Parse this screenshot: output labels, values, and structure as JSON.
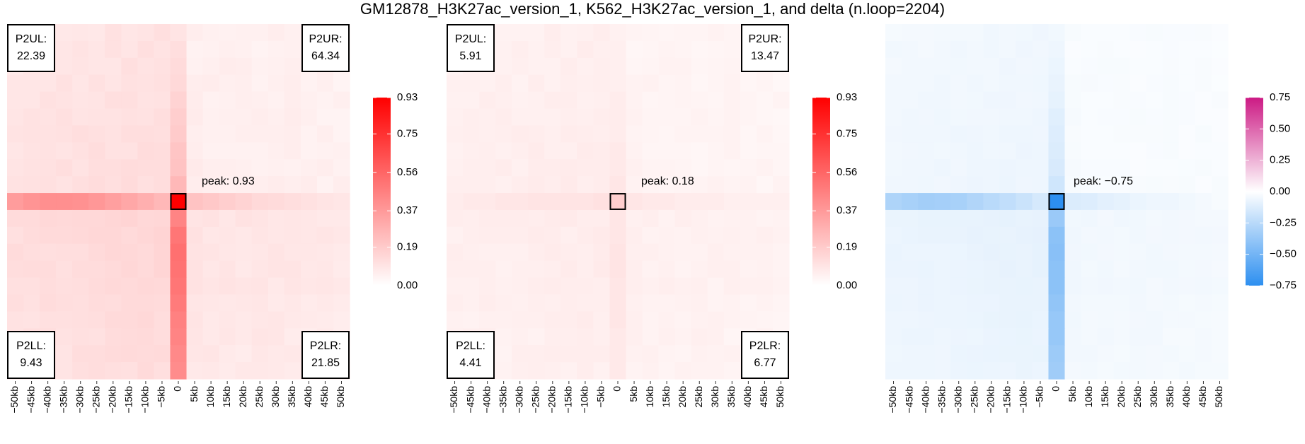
{
  "title": "GM12878_H3K27ac_version_1, K562_H3K27ac_version_1, and delta (n.loop=2204)",
  "chart_data": [
    {
      "type": "heatmap",
      "name": "GM12878_H3K27ac_version_1",
      "x_ticks": [
        "−50kb",
        "−45kb",
        "−40kb",
        "−35kb",
        "−30kb",
        "−25kb",
        "−20kb",
        "−15kb",
        "−10kb",
        "−5kb",
        "0",
        "5kb",
        "10kb",
        "15kb",
        "20kb",
        "25kb",
        "30kb",
        "35kb",
        "40kb",
        "45kb",
        "50kb"
      ],
      "peak_label": "peak: 0.93",
      "peak": 0.93,
      "corners": {
        "UL": {
          "label": "P2UL:",
          "value": "22.39"
        },
        "UR": {
          "label": "P2UR:",
          "value": "64.34"
        },
        "LL": {
          "label": "P2LL:",
          "value": "9.43"
        },
        "LR": {
          "label": "P2LR:",
          "value": "21.85"
        }
      },
      "colorbar": {
        "min": 0.0,
        "max": 0.93,
        "ticks": [
          "0.93",
          "0.75",
          "0.56",
          "0.37",
          "0.19",
          "0.00"
        ],
        "colors": [
          "#ffffff",
          "#ff0000"
        ]
      },
      "background": 0.04,
      "cross_row": [
        0.36,
        0.39,
        0.41,
        0.41,
        0.4,
        0.38,
        0.35,
        0.32,
        0.29,
        0.26,
        0.93,
        0.22,
        0.2,
        0.18,
        0.16,
        0.14,
        0.13,
        0.12,
        0.11,
        0.1,
        0.09
      ],
      "cross_col": [
        0.1,
        0.12,
        0.13,
        0.14,
        0.16,
        0.18,
        0.19,
        0.21,
        0.22,
        0.26,
        0.93,
        0.45,
        0.5,
        0.52,
        0.51,
        0.5,
        0.48,
        0.46,
        0.45,
        0.43,
        0.42
      ],
      "quadrant_levels": {
        "UL": 0.08,
        "UR": 0.03,
        "LL": 0.1,
        "LR": 0.06
      }
    },
    {
      "type": "heatmap",
      "name": "K562_H3K27ac_version_1",
      "x_ticks": [
        "−50kb",
        "−45kb",
        "−40kb",
        "−35kb",
        "−30kb",
        "−25kb",
        "−20kb",
        "−15kb",
        "−10kb",
        "−5kb",
        "0",
        "5kb",
        "10kb",
        "15kb",
        "20kb",
        "25kb",
        "30kb",
        "35kb",
        "40kb",
        "45kb",
        "50kb"
      ],
      "peak_label": "peak: 0.18",
      "peak": 0.18,
      "corners": {
        "UL": {
          "label": "P2UL:",
          "value": "5.91"
        },
        "UR": {
          "label": "P2UR:",
          "value": "13.47"
        },
        "LL": {
          "label": "P2LL:",
          "value": "4.41"
        },
        "LR": {
          "label": "P2LR:",
          "value": "6.77"
        }
      },
      "colorbar": {
        "min": 0.0,
        "max": 0.93,
        "ticks": [
          "0.93",
          "0.75",
          "0.56",
          "0.37",
          "0.19",
          "0.00"
        ],
        "colors": [
          "#ffffff",
          "#ff0000"
        ]
      },
      "background": 0.03,
      "cross_row": [
        0.07,
        0.08,
        0.08,
        0.09,
        0.09,
        0.1,
        0.1,
        0.1,
        0.1,
        0.11,
        0.18,
        0.09,
        0.08,
        0.08,
        0.07,
        0.07,
        0.07,
        0.06,
        0.06,
        0.06,
        0.06
      ],
      "cross_col": [
        0.05,
        0.06,
        0.06,
        0.06,
        0.07,
        0.07,
        0.07,
        0.08,
        0.08,
        0.09,
        0.18,
        0.09,
        0.09,
        0.1,
        0.1,
        0.09,
        0.09,
        0.09,
        0.08,
        0.08,
        0.08
      ],
      "quadrant_levels": {
        "UL": 0.04,
        "UR": 0.02,
        "LL": 0.04,
        "LR": 0.03
      }
    },
    {
      "type": "heatmap",
      "name": "delta",
      "x_ticks": [
        "−50kb",
        "−45kb",
        "−40kb",
        "−35kb",
        "−30kb",
        "−25kb",
        "−20kb",
        "−15kb",
        "−10kb",
        "−5kb",
        "0",
        "5kb",
        "10kb",
        "15kb",
        "20kb",
        "25kb",
        "30kb",
        "35kb",
        "40kb",
        "45kb",
        "50kb"
      ],
      "peak_label": "peak: −0.75",
      "peak": -0.75,
      "corners": null,
      "colorbar": {
        "min": -0.75,
        "max": 0.75,
        "ticks": [
          "0.75",
          "0.50",
          "0.25",
          "0.00",
          "−0.25",
          "−0.50",
          "−0.75"
        ],
        "colors": [
          "#2d8ff0",
          "#ffffff",
          "#cc1a84"
        ]
      },
      "background": -0.02,
      "cross_row": [
        -0.29,
        -0.31,
        -0.33,
        -0.32,
        -0.31,
        -0.28,
        -0.25,
        -0.22,
        -0.19,
        -0.15,
        -0.75,
        -0.13,
        -0.12,
        -0.1,
        -0.09,
        -0.07,
        -0.06,
        -0.06,
        -0.05,
        -0.04,
        -0.03
      ],
      "cross_col": [
        -0.05,
        -0.06,
        -0.07,
        -0.08,
        -0.09,
        -0.11,
        -0.12,
        -0.13,
        -0.14,
        -0.17,
        -0.75,
        -0.36,
        -0.41,
        -0.42,
        -0.41,
        -0.41,
        -0.39,
        -0.37,
        -0.37,
        -0.35,
        -0.34
      ],
      "quadrant_levels": {
        "UL": -0.04,
        "UR": -0.01,
        "LL": -0.06,
        "LR": -0.03
      }
    }
  ]
}
